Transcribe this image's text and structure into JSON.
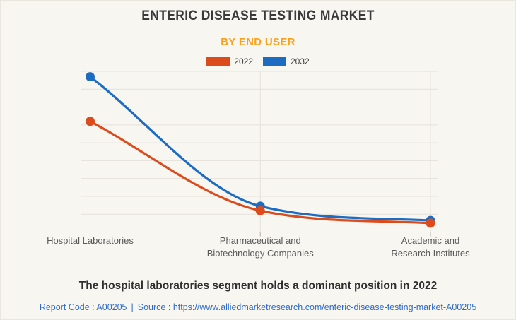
{
  "header": {
    "title": "ENTERIC DISEASE TESTING MARKET",
    "subtitle": "BY END USER"
  },
  "legend": [
    {
      "label": "2022",
      "color": "#dc4b1c"
    },
    {
      "label": "2032",
      "color": "#1d6cc1"
    }
  ],
  "chart_data": {
    "type": "line",
    "curve": "monotone",
    "title": "ENTERIC DISEASE TESTING MARKET",
    "subtitle": "BY END USER",
    "categories": [
      "Hospital Laboratories",
      "Pharmaceutical and\nBiotechnology Companies",
      "Academic and\nResearch Institutes"
    ],
    "series": [
      {
        "name": "2022",
        "color": "#dc4b1c",
        "values": [
          6.2,
          1.2,
          0.5
        ]
      },
      {
        "name": "2032",
        "color": "#1d6cc1",
        "values": [
          8.7,
          1.45,
          0.65
        ]
      }
    ],
    "xlabel": "",
    "ylabel": "",
    "ylim": [
      0,
      9
    ],
    "gridline_step": 1,
    "grid": true,
    "y_tick_labels_visible": false,
    "legend_position": "top",
    "note": "No numeric y-axis labels are shown in the figure; series values are estimated in gridline units (9 equal intervals between baseline and top line)."
  },
  "caption": "The hospital laboratories segment holds a dominant position in 2022",
  "footer": {
    "report_code": "Report Code : A00205",
    "separator": "|",
    "source_prefix": "Source :",
    "source_url": "https://www.alliedmarketresearch.com/enteric-disease-testing-market-A00205"
  },
  "colors": {
    "background": "#f8f6f1",
    "border": "#e9e6de",
    "title": "#3a3a3a",
    "subtitle_orange": "#f9a11b",
    "grid": "#e4e1d9",
    "axis": "#b4b1aa",
    "category_label": "#5a5a5a",
    "caption": "#2f2f2f",
    "link": "#2e6bc6",
    "series_2022": "#dc4b1c",
    "series_2032": "#1d6cc1"
  }
}
